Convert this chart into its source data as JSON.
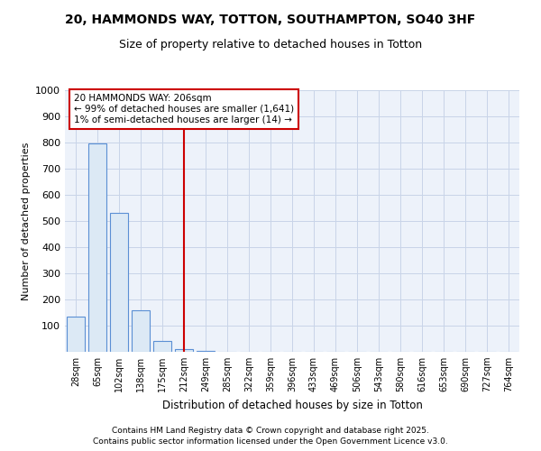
{
  "title_line1": "20, HAMMONDS WAY, TOTTON, SOUTHAMPTON, SO40 3HF",
  "title_line2": "Size of property relative to detached houses in Totton",
  "xlabel": "Distribution of detached houses by size in Totton",
  "ylabel": "Number of detached properties",
  "categories": [
    "28sqm",
    "65sqm",
    "102sqm",
    "138sqm",
    "175sqm",
    "212sqm",
    "249sqm",
    "285sqm",
    "322sqm",
    "359sqm",
    "396sqm",
    "433sqm",
    "469sqm",
    "506sqm",
    "543sqm",
    "580sqm",
    "616sqm",
    "653sqm",
    "690sqm",
    "727sqm",
    "764sqm"
  ],
  "values": [
    135,
    795,
    530,
    160,
    40,
    10,
    5,
    0,
    0,
    0,
    0,
    0,
    0,
    0,
    0,
    0,
    0,
    0,
    0,
    0,
    0
  ],
  "bar_color": "#dce9f5",
  "bar_edge_color": "#5b8fd4",
  "red_line_index": 5,
  "annotation_line1": "20 HAMMONDS WAY: 206sqm",
  "annotation_line2": "← 99% of detached houses are smaller (1,641)",
  "annotation_line3": "1% of semi-detached houses are larger (14) →",
  "annotation_box_color": "#cc0000",
  "ylim": [
    0,
    1000
  ],
  "yticks": [
    0,
    100,
    200,
    300,
    400,
    500,
    600,
    700,
    800,
    900,
    1000
  ],
  "grid_color": "#c8d4e8",
  "bg_color": "#edf2fa",
  "footer_line1": "Contains HM Land Registry data © Crown copyright and database right 2025.",
  "footer_line2": "Contains public sector information licensed under the Open Government Licence v3.0."
}
